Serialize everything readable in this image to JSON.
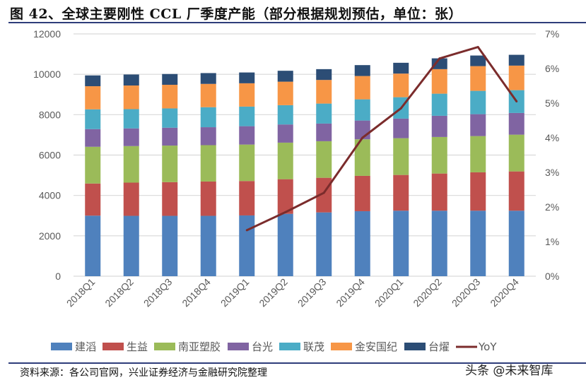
{
  "title": "图 42、全球主要刚性 CCL 厂季度产能（部分根据规划预估，单位：张）",
  "source": "资料来源：各公司官网，兴业证券经济与金融研究院整理",
  "watermark": "头条 @未来智库",
  "chart_data": {
    "type": "bar",
    "stacked": true,
    "title": "",
    "categories": [
      "2018Q1",
      "2018Q2",
      "2018Q3",
      "2018Q4",
      "2019Q1",
      "2019Q2",
      "2019Q3",
      "2019Q4",
      "2020Q1",
      "2020Q2",
      "2020Q3",
      "2020Q4"
    ],
    "y_left": {
      "ylim": [
        0,
        12000
      ],
      "ticks": [
        "0",
        "2000",
        "4000",
        "6000",
        "8000",
        "10000",
        "12000"
      ]
    },
    "y_right": {
      "ylim": [
        0,
        7
      ],
      "ticks": [
        "0%",
        "1%",
        "2%",
        "3%",
        "4%",
        "5%",
        "6%",
        "7%"
      ]
    },
    "grid": true,
    "legend_position": "bottom",
    "series": [
      {
        "name": "建滔",
        "color": "#4f81bd",
        "values": [
          3000,
          2990,
          2990,
          2990,
          3010,
          3090,
          3160,
          3220,
          3245,
          3245,
          3245,
          3245
        ]
      },
      {
        "name": "生益",
        "color": "#c0504d",
        "values": [
          1590,
          1645,
          1670,
          1700,
          1705,
          1715,
          1715,
          1750,
          1770,
          1840,
          1900,
          1945
        ]
      },
      {
        "name": "南亚塑胶",
        "color": "#9bbb59",
        "values": [
          1820,
          1810,
          1810,
          1800,
          1805,
          1810,
          1810,
          1810,
          1820,
          1810,
          1795,
          1820
        ]
      },
      {
        "name": "台光",
        "color": "#8064a2",
        "values": [
          875,
          875,
          885,
          890,
          910,
          900,
          875,
          930,
          970,
          1050,
          1085,
          1075
        ]
      },
      {
        "name": "联茂",
        "color": "#4bacc6",
        "values": [
          980,
          955,
          955,
          990,
          970,
          955,
          990,
          1050,
          1060,
          1095,
          1155,
          1130
        ]
      },
      {
        "name": "金安国纪",
        "color": "#f79646",
        "values": [
          1145,
          1170,
          1170,
          1155,
          1155,
          1165,
          1170,
          1155,
          1170,
          1215,
          1225,
          1215
        ]
      },
      {
        "name": "台燿",
        "color": "#2c4d75",
        "values": [
          535,
          545,
          535,
          535,
          535,
          540,
          535,
          540,
          535,
          535,
          525,
          535
        ]
      }
    ],
    "line": {
      "name": "YoY",
      "color": "#7b2c2c",
      "axis": "right",
      "unit": "%",
      "values": [
        null,
        null,
        null,
        null,
        1.33,
        1.85,
        2.41,
        4.0,
        4.85,
        6.29,
        6.62,
        5.05
      ]
    }
  }
}
